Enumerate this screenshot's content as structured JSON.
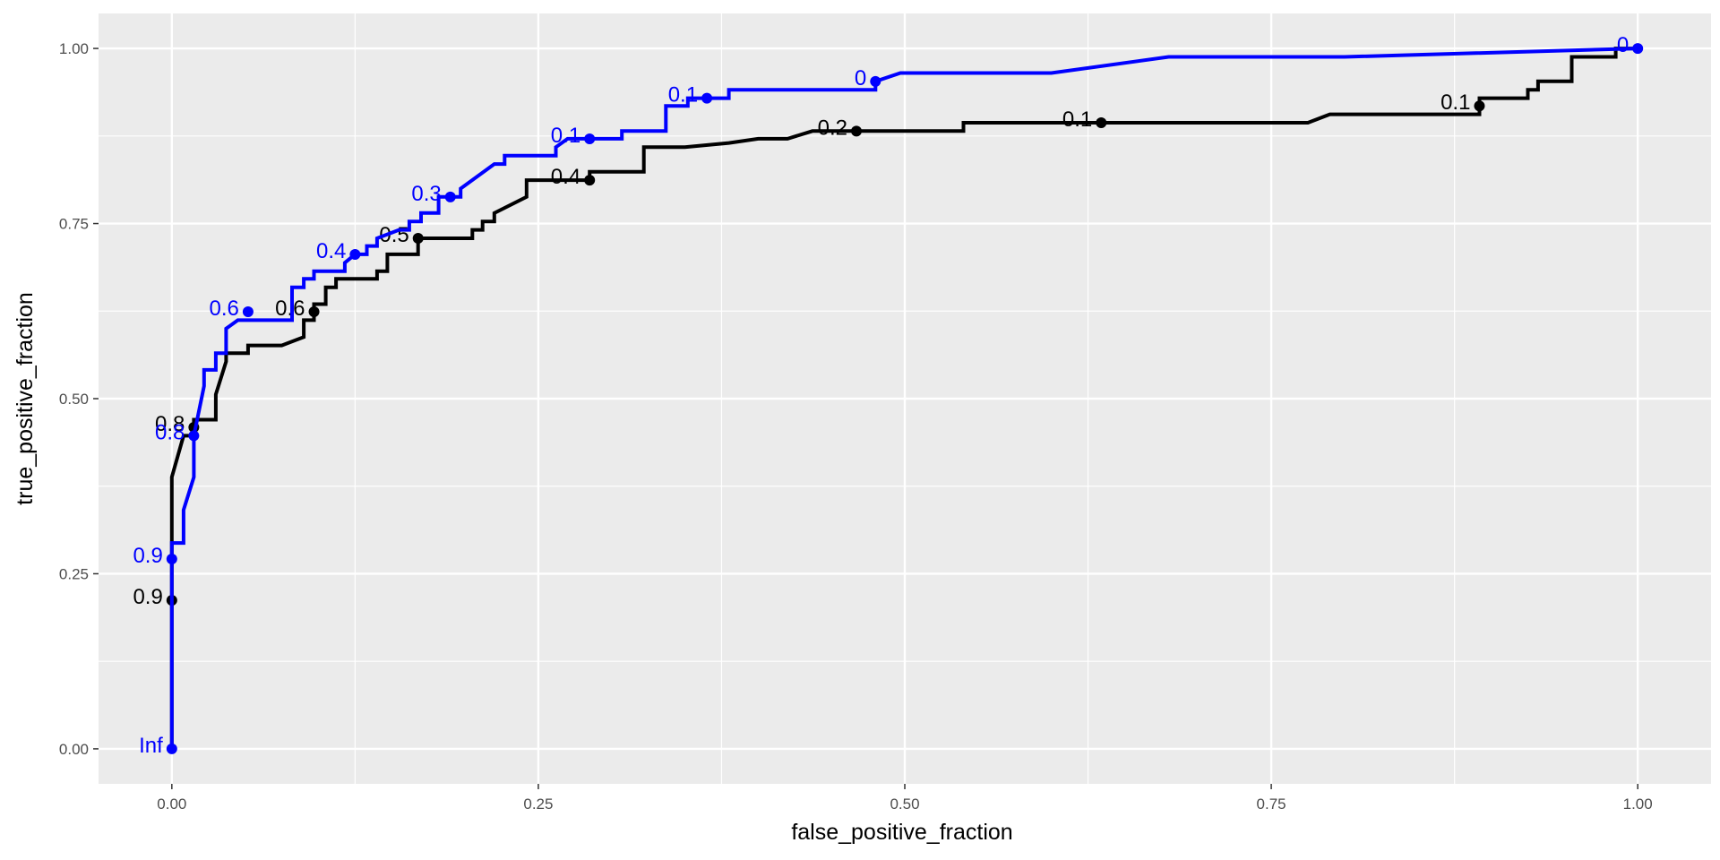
{
  "chart_data": {
    "type": "line",
    "xlabel": "false_positive_fraction",
    "ylabel": "true_positive_fraction",
    "xlim": [
      -0.05,
      1.05
    ],
    "ylim": [
      -0.05,
      1.05
    ],
    "x_ticks": [
      0,
      0.25,
      0.5,
      0.75,
      1
    ],
    "x_tick_labels": [
      "0.00",
      "0.25",
      "0.50",
      "0.75",
      "1.00"
    ],
    "y_ticks": [
      0,
      0.25,
      0.5,
      0.75,
      1
    ],
    "y_tick_labels": [
      "0.00",
      "0.25",
      "0.50",
      "0.75",
      "1.00"
    ],
    "grid": true,
    "legend": "none",
    "series": [
      {
        "color": "#000000",
        "curve": [
          [
            0,
            0
          ],
          [
            0,
            0.212
          ],
          [
            0,
            0.388
          ],
          [
            0.008,
            0.447
          ],
          [
            0.015,
            0.447
          ],
          [
            0.015,
            0.47
          ],
          [
            0.03,
            0.47
          ],
          [
            0.03,
            0.506
          ],
          [
            0.037,
            0.553
          ],
          [
            0.037,
            0.565
          ],
          [
            0.052,
            0.565
          ],
          [
            0.052,
            0.576
          ],
          [
            0.075,
            0.576
          ],
          [
            0.09,
            0.588
          ],
          [
            0.09,
            0.612
          ],
          [
            0.097,
            0.612
          ],
          [
            0.097,
            0.635
          ],
          [
            0.105,
            0.635
          ],
          [
            0.105,
            0.659
          ],
          [
            0.112,
            0.659
          ],
          [
            0.112,
            0.671
          ],
          [
            0.14,
            0.671
          ],
          [
            0.14,
            0.682
          ],
          [
            0.147,
            0.682
          ],
          [
            0.147,
            0.706
          ],
          [
            0.168,
            0.706
          ],
          [
            0.168,
            0.729
          ],
          [
            0.205,
            0.729
          ],
          [
            0.205,
            0.741
          ],
          [
            0.212,
            0.741
          ],
          [
            0.212,
            0.753
          ],
          [
            0.22,
            0.753
          ],
          [
            0.22,
            0.765
          ],
          [
            0.242,
            0.788
          ],
          [
            0.242,
            0.812
          ],
          [
            0.285,
            0.812
          ],
          [
            0.285,
            0.824
          ],
          [
            0.322,
            0.824
          ],
          [
            0.322,
            0.859
          ],
          [
            0.35,
            0.859
          ],
          [
            0.38,
            0.865
          ],
          [
            0.4,
            0.871
          ],
          [
            0.42,
            0.871
          ],
          [
            0.437,
            0.882
          ],
          [
            0.54,
            0.882
          ],
          [
            0.54,
            0.894
          ],
          [
            0.775,
            0.894
          ],
          [
            0.79,
            0.906
          ],
          [
            0.892,
            0.906
          ],
          [
            0.892,
            0.929
          ],
          [
            0.925,
            0.929
          ],
          [
            0.925,
            0.941
          ],
          [
            0.932,
            0.941
          ],
          [
            0.932,
            0.953
          ],
          [
            0.955,
            0.953
          ],
          [
            0.955,
            0.988
          ],
          [
            0.985,
            0.988
          ],
          [
            0.985,
            1.0
          ],
          [
            1.0,
            1.0
          ]
        ],
        "points": [
          {
            "x": 0,
            "y": 0.212,
            "label": "0.9"
          },
          {
            "x": 0.015,
            "y": 0.459,
            "label": "0.8"
          },
          {
            "x": 0.097,
            "y": 0.624,
            "label": "0.6"
          },
          {
            "x": 0.168,
            "y": 0.729,
            "label": "0.5"
          },
          {
            "x": 0.285,
            "y": 0.812,
            "label": "0.4"
          },
          {
            "x": 0.467,
            "y": 0.882,
            "label": "0.2"
          },
          {
            "x": 0.634,
            "y": 0.894,
            "label": "0.1"
          },
          {
            "x": 0.892,
            "y": 0.918,
            "label": "0.1"
          }
        ]
      },
      {
        "color": "#0000ff",
        "curve": [
          [
            0,
            0
          ],
          [
            0,
            0.271
          ],
          [
            0,
            0.294
          ],
          [
            0.008,
            0.294
          ],
          [
            0.008,
            0.341
          ],
          [
            0.015,
            0.388
          ],
          [
            0.015,
            0.447
          ],
          [
            0.022,
            0.518
          ],
          [
            0.022,
            0.541
          ],
          [
            0.03,
            0.541
          ],
          [
            0.03,
            0.565
          ],
          [
            0.037,
            0.565
          ],
          [
            0.037,
            0.6
          ],
          [
            0.045,
            0.612
          ],
          [
            0.082,
            0.612
          ],
          [
            0.082,
            0.624
          ],
          [
            0.082,
            0.659
          ],
          [
            0.09,
            0.659
          ],
          [
            0.09,
            0.671
          ],
          [
            0.097,
            0.671
          ],
          [
            0.097,
            0.682
          ],
          [
            0.118,
            0.682
          ],
          [
            0.118,
            0.694
          ],
          [
            0.125,
            0.706
          ],
          [
            0.133,
            0.706
          ],
          [
            0.133,
            0.718
          ],
          [
            0.14,
            0.718
          ],
          [
            0.14,
            0.729
          ],
          [
            0.155,
            0.741
          ],
          [
            0.162,
            0.741
          ],
          [
            0.162,
            0.753
          ],
          [
            0.17,
            0.753
          ],
          [
            0.17,
            0.765
          ],
          [
            0.182,
            0.765
          ],
          [
            0.182,
            0.788
          ],
          [
            0.19,
            0.788
          ],
          [
            0.197,
            0.788
          ],
          [
            0.197,
            0.8
          ],
          [
            0.22,
            0.835
          ],
          [
            0.227,
            0.835
          ],
          [
            0.227,
            0.847
          ],
          [
            0.262,
            0.847
          ],
          [
            0.262,
            0.859
          ],
          [
            0.27,
            0.871
          ],
          [
            0.307,
            0.871
          ],
          [
            0.307,
            0.882
          ],
          [
            0.337,
            0.882
          ],
          [
            0.337,
            0.918
          ],
          [
            0.352,
            0.918
          ],
          [
            0.352,
            0.929
          ],
          [
            0.38,
            0.929
          ],
          [
            0.38,
            0.941
          ],
          [
            0.48,
            0.941
          ],
          [
            0.48,
            0.953
          ],
          [
            0.497,
            0.965
          ],
          [
            0.6,
            0.965
          ],
          [
            0.68,
            0.988
          ],
          [
            0.8,
            0.988
          ],
          [
            1.0,
            1.0
          ]
        ],
        "points": [
          {
            "x": 0,
            "y": 0,
            "label": "Inf"
          },
          {
            "x": 0,
            "y": 0.271,
            "label": "0.9"
          },
          {
            "x": 0.015,
            "y": 0.447,
            "label": "0.8"
          },
          {
            "x": 0.052,
            "y": 0.624,
            "label": "0.6"
          },
          {
            "x": 0.125,
            "y": 0.706,
            "label": "0.4"
          },
          {
            "x": 0.19,
            "y": 0.788,
            "label": "0.3"
          },
          {
            "x": 0.285,
            "y": 0.871,
            "label": "0.1"
          },
          {
            "x": 0.365,
            "y": 0.929,
            "label": "0.1"
          },
          {
            "x": 0.48,
            "y": 0.953,
            "label": "0"
          },
          {
            "x": 1.0,
            "y": 1.0,
            "label": "0"
          }
        ]
      }
    ]
  }
}
